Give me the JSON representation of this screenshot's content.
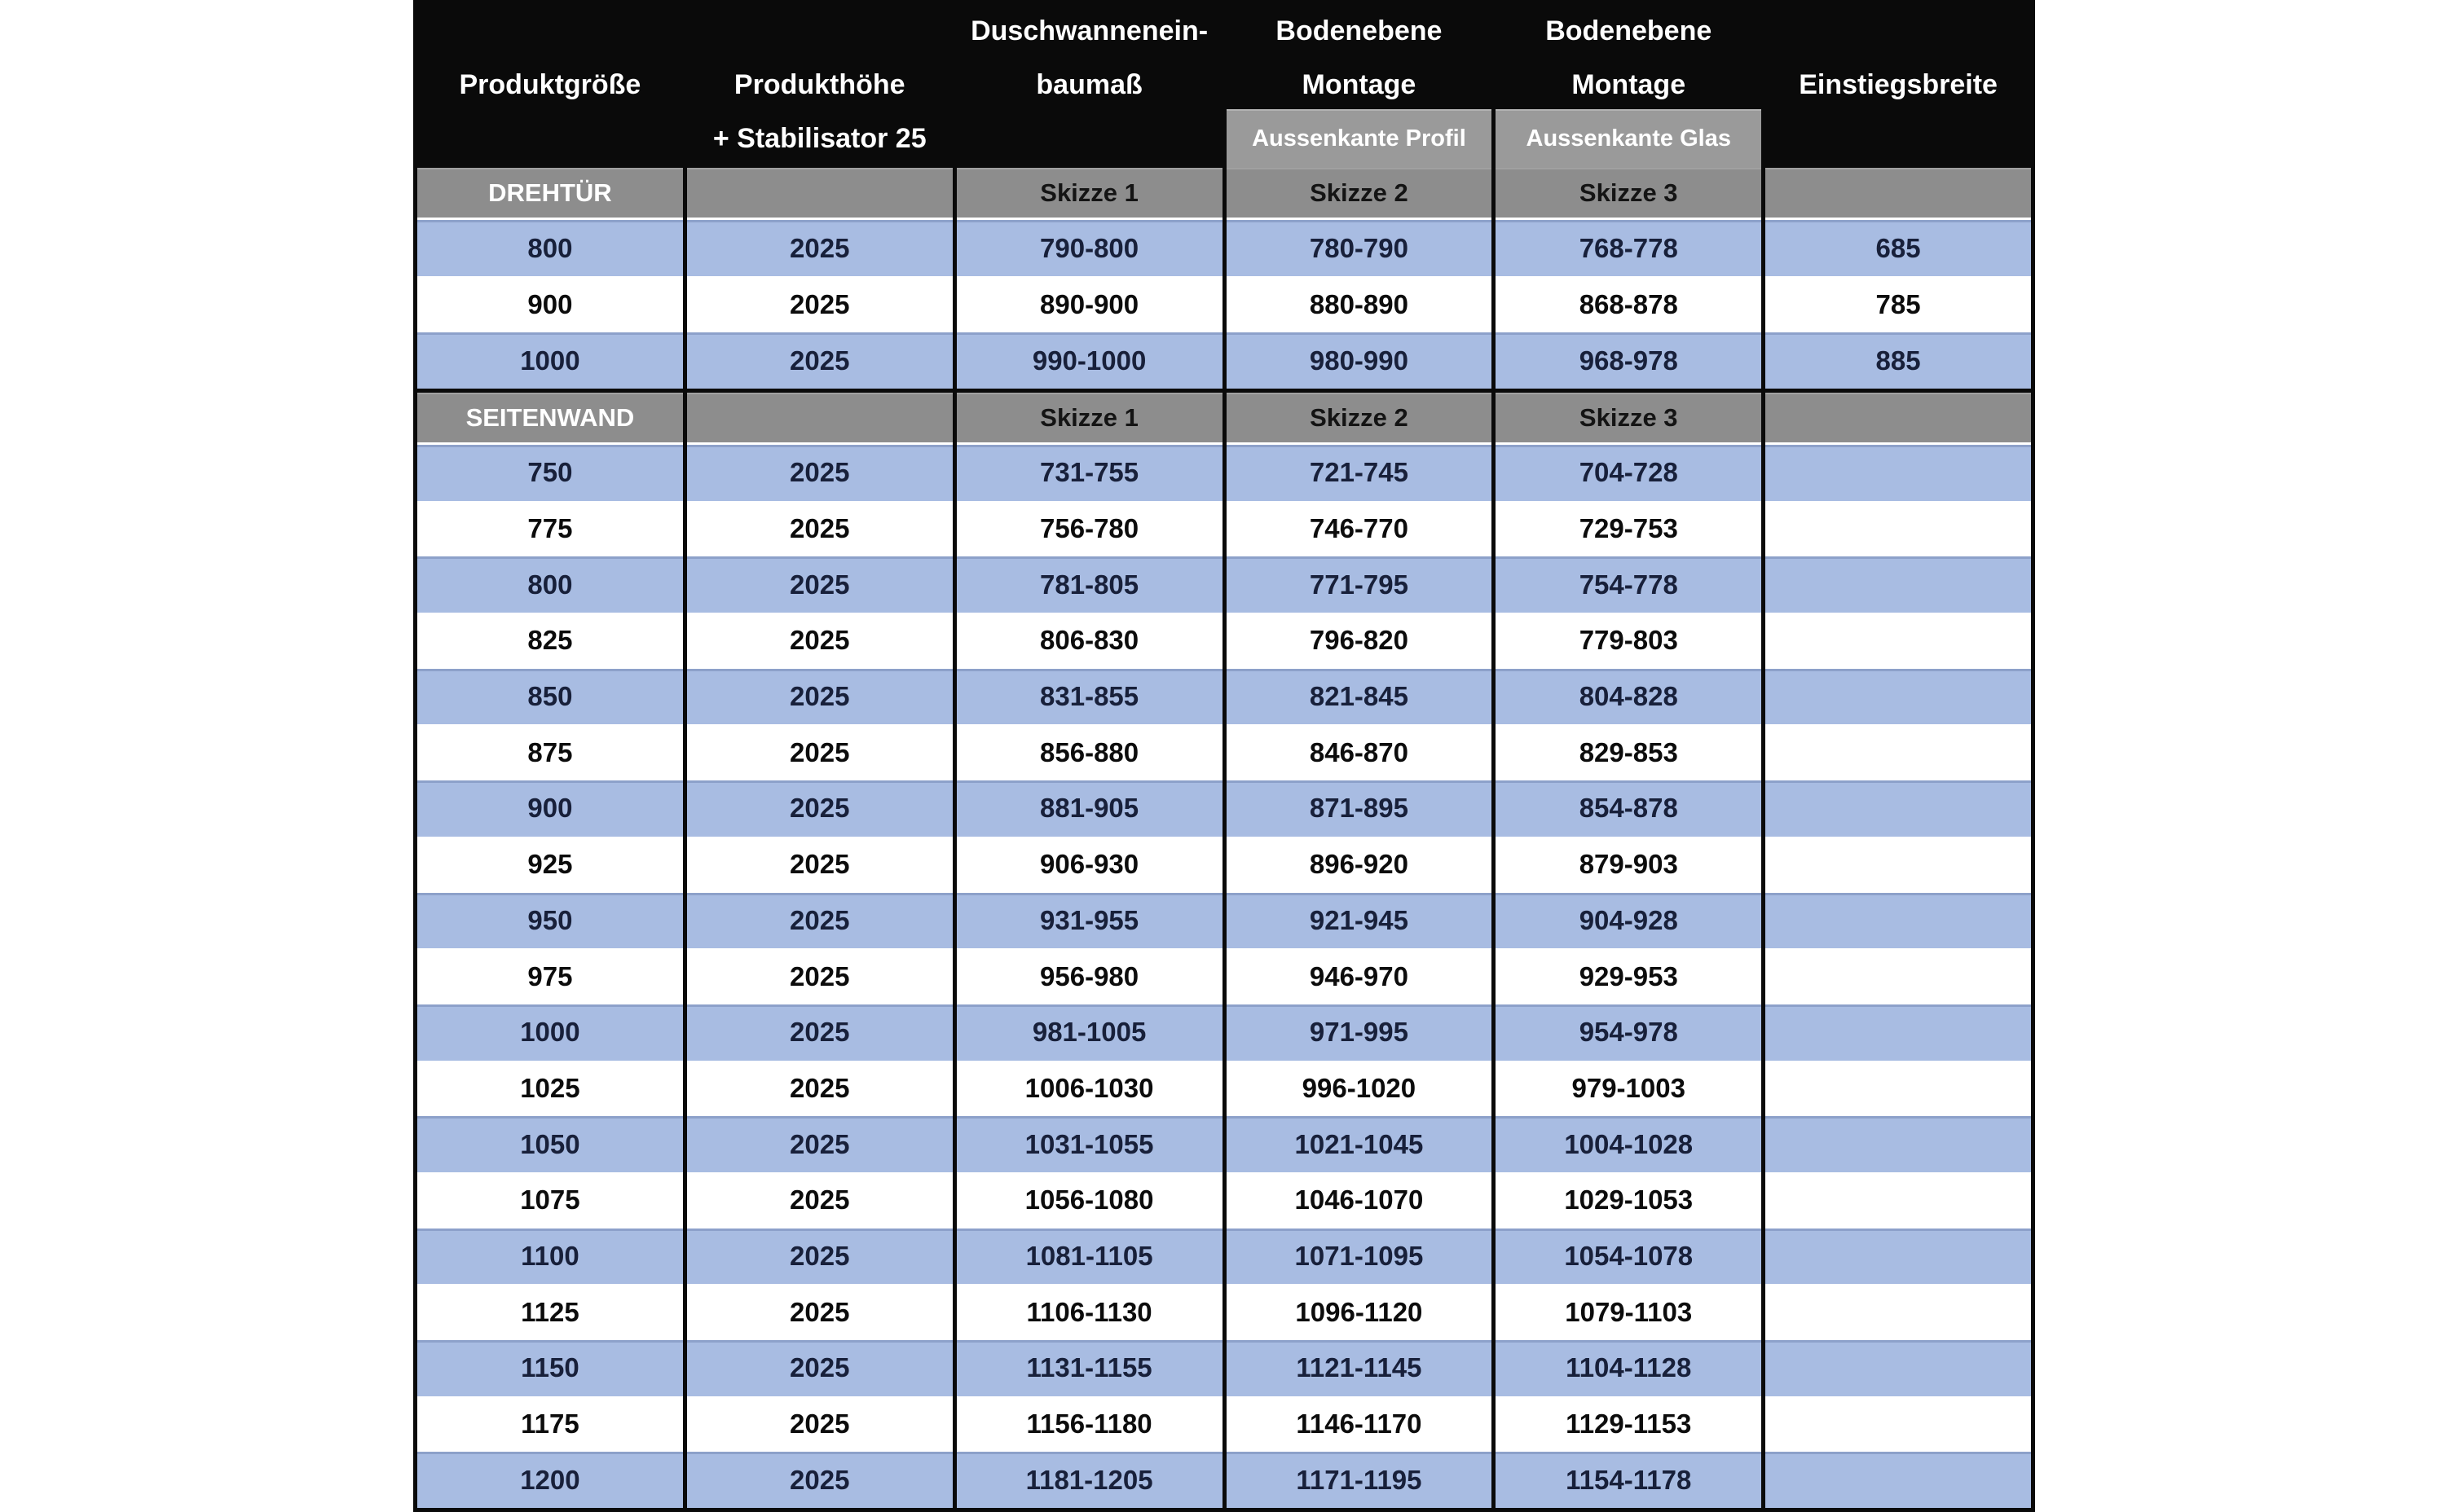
{
  "colors": {
    "header_black": "#0a0a0a",
    "header_text": "#ffffff",
    "section_gray": "#8d8d8d",
    "subheader_gray": "#9a9a9a",
    "row_blue": "#a8bce2",
    "row_white": "#ffffff",
    "data_text": "#101522"
  },
  "header": {
    "columns": [
      {
        "line1": "Produktgröße",
        "line2": ""
      },
      {
        "line1": "Produkthöhe",
        "line2": "+ Stabilisator 25"
      },
      {
        "line1": "Duschwannenein-",
        "line2": "baumaß"
      },
      {
        "line1": "Bodenebene",
        "line2": "Montage",
        "sub": "Aussenkante Profil"
      },
      {
        "line1": "Bodenebene",
        "line2": "Montage",
        "sub": "Aussenkante Glas"
      },
      {
        "line1": "Einstiegsbreite",
        "line2": ""
      }
    ]
  },
  "sections": [
    {
      "label": "DREHTÜR",
      "skizze": [
        "Skizze 1",
        "Skizze 2",
        "Skizze 3"
      ],
      "rows": [
        [
          "800",
          "2025",
          "790-800",
          "780-790",
          "768-778",
          "685"
        ],
        [
          "900",
          "2025",
          "890-900",
          "880-890",
          "868-878",
          "785"
        ],
        [
          "1000",
          "2025",
          "990-1000",
          "980-990",
          "968-978",
          "885"
        ]
      ]
    },
    {
      "label": "SEITENWAND",
      "skizze": [
        "Skizze 1",
        "Skizze 2",
        "Skizze 3"
      ],
      "rows": [
        [
          "750",
          "2025",
          "731-755",
          "721-745",
          "704-728",
          ""
        ],
        [
          "775",
          "2025",
          "756-780",
          "746-770",
          "729-753",
          ""
        ],
        [
          "800",
          "2025",
          "781-805",
          "771-795",
          "754-778",
          ""
        ],
        [
          "825",
          "2025",
          "806-830",
          "796-820",
          "779-803",
          ""
        ],
        [
          "850",
          "2025",
          "831-855",
          "821-845",
          "804-828",
          ""
        ],
        [
          "875",
          "2025",
          "856-880",
          "846-870",
          "829-853",
          ""
        ],
        [
          "900",
          "2025",
          "881-905",
          "871-895",
          "854-878",
          ""
        ],
        [
          "925",
          "2025",
          "906-930",
          "896-920",
          "879-903",
          ""
        ],
        [
          "950",
          "2025",
          "931-955",
          "921-945",
          "904-928",
          ""
        ],
        [
          "975",
          "2025",
          "956-980",
          "946-970",
          "929-953",
          ""
        ],
        [
          "1000",
          "2025",
          "981-1005",
          "971-995",
          "954-978",
          ""
        ],
        [
          "1025",
          "2025",
          "1006-1030",
          "996-1020",
          "979-1003",
          ""
        ],
        [
          "1050",
          "2025",
          "1031-1055",
          "1021-1045",
          "1004-1028",
          ""
        ],
        [
          "1075",
          "2025",
          "1056-1080",
          "1046-1070",
          "1029-1053",
          ""
        ],
        [
          "1100",
          "2025",
          "1081-1105",
          "1071-1095",
          "1054-1078",
          ""
        ],
        [
          "1125",
          "2025",
          "1106-1130",
          "1096-1120",
          "1079-1103",
          ""
        ],
        [
          "1150",
          "2025",
          "1131-1155",
          "1121-1145",
          "1104-1128",
          ""
        ],
        [
          "1175",
          "2025",
          "1156-1180",
          "1146-1170",
          "1129-1153",
          ""
        ],
        [
          "1200",
          "2025",
          "1181-1205",
          "1171-1195",
          "1154-1178",
          ""
        ]
      ]
    }
  ]
}
